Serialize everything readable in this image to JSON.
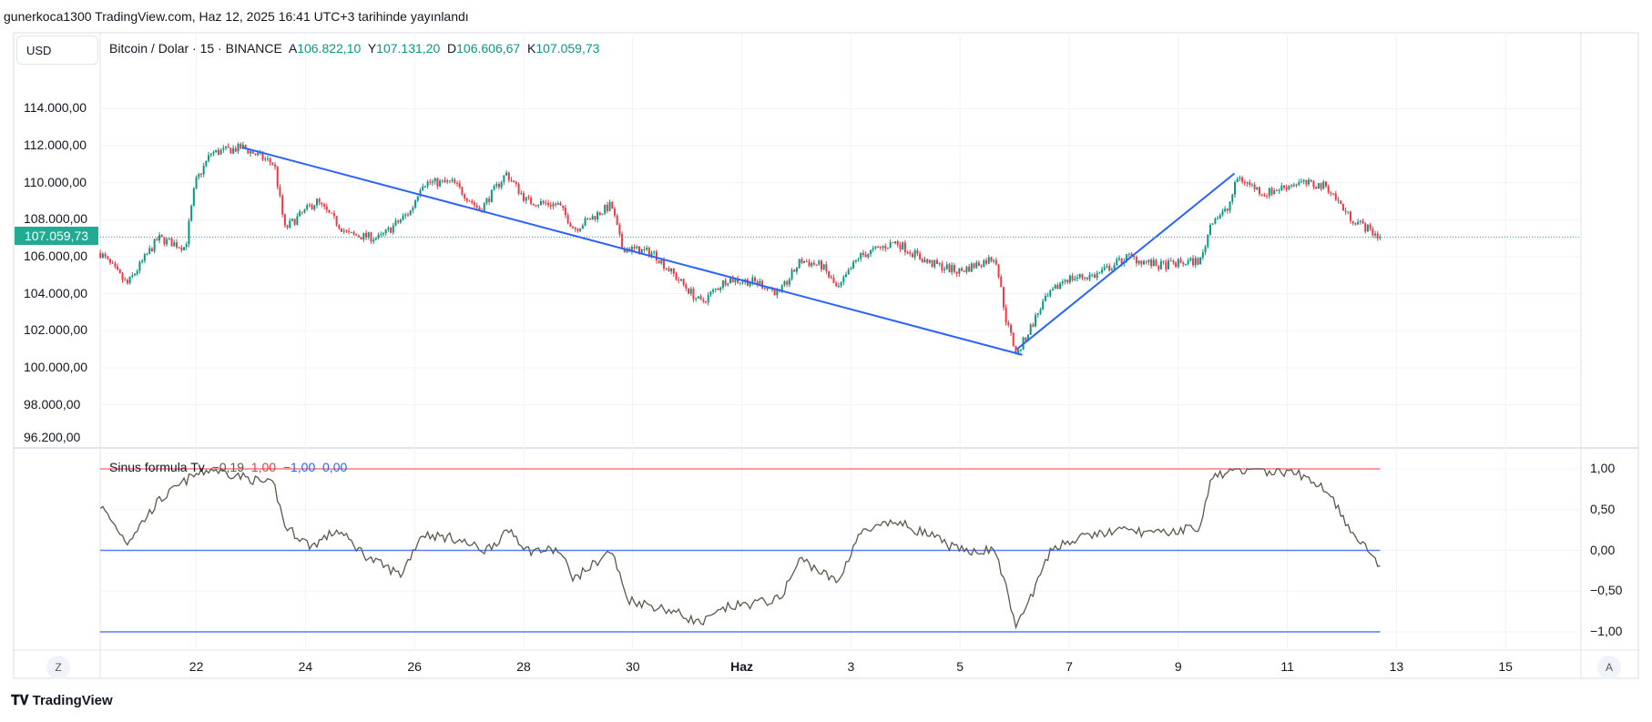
{
  "header": {
    "published": "gunerkoca1300 TradingView.com, Haz 12, 2025 16:41 UTC+3 tarihinde yayınlandı"
  },
  "currency_button": "USD",
  "legend": {
    "symbol": "Bitcoin / Dolar · 15 · BINANCE",
    "o_label": "A",
    "o": "106.822,10",
    "h_label": "Y",
    "h": "107.131,20",
    "l_label": "D",
    "l": "106.606,67",
    "c_label": "K",
    "c": "107.059,73"
  },
  "current_price_label": "107.059,73",
  "indicator_legend": {
    "name": "Sinus formula Tv",
    "value": "−0,19",
    "upper": "1,00",
    "lower": "−1,00",
    "mid": "0,00"
  },
  "price_axis": [
    "114.000,00",
    "112.000,00",
    "110.000,00",
    "108.000,00",
    "106.000,00",
    "104.000,00",
    "102.000,00",
    "100.000,00",
    "98.000,00",
    "96.200,00"
  ],
  "indicator_axis": [
    "1,00",
    "0,50",
    "0,00",
    "−0,50",
    "−1,00"
  ],
  "time_axis": [
    {
      "label": "22",
      "t": -10
    },
    {
      "label": "24",
      "t": -8
    },
    {
      "label": "26",
      "t": -6
    },
    {
      "label": "28",
      "t": -4
    },
    {
      "label": "30",
      "t": -2
    },
    {
      "label": "Haz",
      "t": 0
    },
    {
      "label": "3",
      "t": 2
    },
    {
      "label": "5",
      "t": 4
    },
    {
      "label": "7",
      "t": 6
    },
    {
      "label": "9",
      "t": 8
    },
    {
      "label": "11",
      "t": 10
    },
    {
      "label": "13",
      "t": 12
    },
    {
      "label": "15",
      "t": 14
    }
  ],
  "buttons": {
    "zoom": "Z",
    "auto": "A"
  },
  "footer": {
    "brand": "TradingView"
  },
  "colors": {
    "up": "#089981",
    "down": "#f23645",
    "trend": "#2962ff",
    "indicator": "#5d574c",
    "upper": "#f77c80",
    "lower": "#5b7cf6"
  },
  "chart_data": {
    "type": "candlestick",
    "x_unit": "days relative to Jun 1 (Haz 1)",
    "price_waypoints": [
      [
        -11.76,
        106200
      ],
      [
        -11.27,
        104500
      ],
      [
        -10.7,
        107000
      ],
      [
        -10.2,
        106500
      ],
      [
        -10.02,
        110000
      ],
      [
        -9.73,
        111600
      ],
      [
        -9.15,
        111900
      ],
      [
        -8.57,
        111000
      ],
      [
        -8.38,
        107500
      ],
      [
        -7.8,
        109000
      ],
      [
        -7.22,
        107200
      ],
      [
        -6.64,
        107000
      ],
      [
        -6.06,
        108500
      ],
      [
        -5.87,
        110000
      ],
      [
        -5.29,
        110000
      ],
      [
        -4.8,
        108500
      ],
      [
        -4.32,
        110500
      ],
      [
        -3.94,
        109000
      ],
      [
        -3.36,
        108800
      ],
      [
        -3.07,
        107500
      ],
      [
        -2.39,
        108800
      ],
      [
        -2.2,
        106500
      ],
      [
        -1.62,
        106200
      ],
      [
        -1.24,
        105000
      ],
      [
        -0.75,
        103500
      ],
      [
        -0.27,
        104800
      ],
      [
        0.31,
        104600
      ],
      [
        0.69,
        104000
      ],
      [
        1.08,
        105800
      ],
      [
        1.47,
        105500
      ],
      [
        1.76,
        104200
      ],
      [
        2.14,
        106000
      ],
      [
        2.82,
        106800
      ],
      [
        3.4,
        105700
      ],
      [
        3.98,
        105200
      ],
      [
        4.65,
        106000
      ],
      [
        4.85,
        102500
      ],
      [
        5.04,
        100700
      ],
      [
        5.52,
        103500
      ],
      [
        5.91,
        104800
      ],
      [
        6.49,
        105000
      ],
      [
        7.07,
        106000
      ],
      [
        7.64,
        105500
      ],
      [
        8.42,
        105800
      ],
      [
        8.61,
        108000
      ],
      [
        8.9,
        108500
      ],
      [
        9.09,
        110300
      ],
      [
        9.58,
        109400
      ],
      [
        10.16,
        110000
      ],
      [
        10.73,
        109800
      ],
      [
        11.12,
        108200
      ],
      [
        11.7,
        107060
      ]
    ],
    "indicator_waypoints": [
      [
        -11.76,
        0.55
      ],
      [
        -11.27,
        0.1
      ],
      [
        -10.7,
        0.6
      ],
      [
        -10.1,
        0.9
      ],
      [
        -9.73,
        1.0
      ],
      [
        -8.57,
        0.8
      ],
      [
        -8.38,
        0.3
      ],
      [
        -7.9,
        0.05
      ],
      [
        -7.41,
        0.25
      ],
      [
        -6.83,
        -0.1
      ],
      [
        -6.25,
        -0.3
      ],
      [
        -5.87,
        0.2
      ],
      [
        -5.29,
        0.15
      ],
      [
        -4.71,
        0.0
      ],
      [
        -4.23,
        0.25
      ],
      [
        -3.94,
        0.0
      ],
      [
        -3.36,
        0.0
      ],
      [
        -3.07,
        -0.35
      ],
      [
        -2.39,
        0.0
      ],
      [
        -2.1,
        -0.6
      ],
      [
        -1.24,
        -0.75
      ],
      [
        -0.75,
        -0.9
      ],
      [
        -0.27,
        -0.7
      ],
      [
        0.69,
        -0.6
      ],
      [
        1.08,
        -0.1
      ],
      [
        1.76,
        -0.4
      ],
      [
        2.14,
        0.2
      ],
      [
        2.82,
        0.35
      ],
      [
        3.4,
        0.2
      ],
      [
        3.98,
        0.0
      ],
      [
        4.65,
        0.0
      ],
      [
        5.04,
        -0.95
      ],
      [
        5.71,
        0.05
      ],
      [
        6.49,
        0.2
      ],
      [
        7.07,
        0.25
      ],
      [
        7.64,
        0.2
      ],
      [
        8.42,
        0.3
      ],
      [
        8.61,
        0.9
      ],
      [
        9.09,
        1.0
      ],
      [
        10.16,
        0.95
      ],
      [
        10.73,
        0.75
      ],
      [
        11.12,
        0.3
      ],
      [
        11.7,
        -0.19
      ]
    ],
    "trendlines": [
      [
        [
          -9.15,
          111900
        ],
        [
          5.14,
          100700
        ]
      ],
      [
        [
          5.04,
          101000
        ],
        [
          9.03,
          110500
        ]
      ]
    ],
    "current_price": 107059.73,
    "price_range": [
      96200,
      114600
    ],
    "indicator_levels": {
      "upper": 1,
      "lower": -1,
      "mid": 0
    },
    "indicator_range": [
      -1.1,
      1.1
    ]
  }
}
